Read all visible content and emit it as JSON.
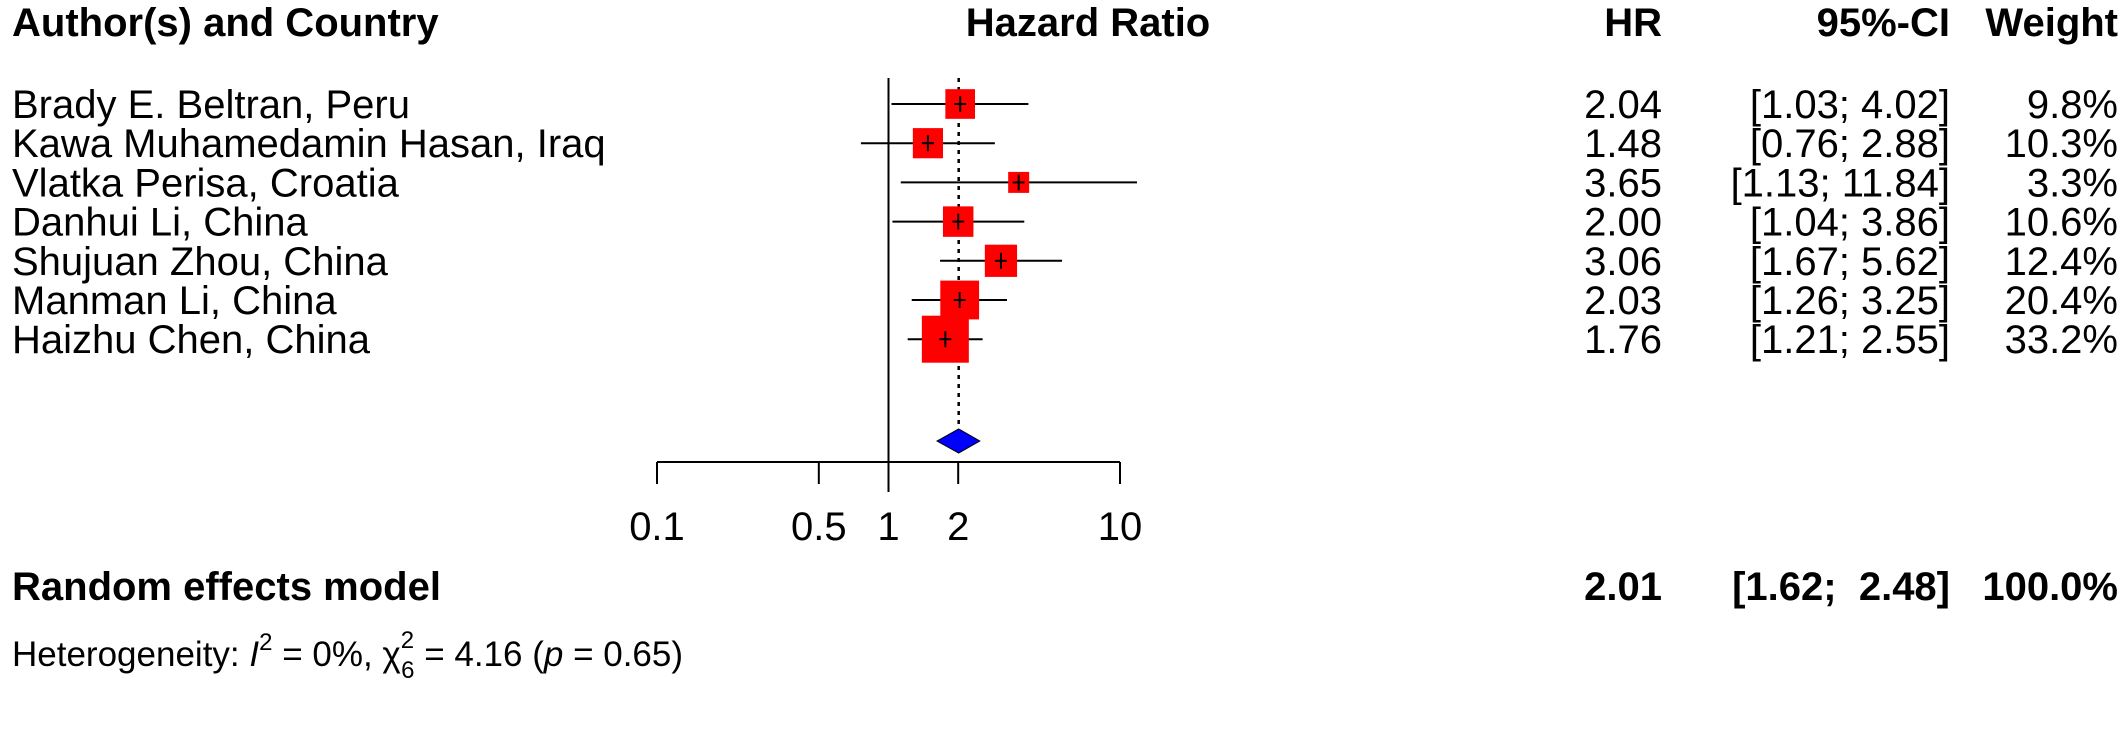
{
  "headers": {
    "study": "Author(s) and Country",
    "plot": "Hazard Ratio",
    "hr": "HR",
    "ci": "95%-CI",
    "weight": "Weight"
  },
  "chart_data": {
    "type": "forest",
    "x_scale": "log",
    "xlim": [
      0.1,
      10
    ],
    "ticks": [
      0.1,
      0.5,
      1,
      2,
      10
    ],
    "tick_labels": [
      "0.1",
      "0.5",
      "1",
      "2",
      "10"
    ],
    "reference_line": 1,
    "studies": [
      {
        "label": "Brady E. Beltran,  Peru",
        "hr": 2.04,
        "lower": 1.03,
        "upper": 4.02,
        "hr_text": "2.04",
        "ci_text": "[1.03;  4.02]",
        "weight": 9.8,
        "weight_text": "9.8%"
      },
      {
        "label": "Kawa Muhamedamin Hasan,  Iraq",
        "hr": 1.48,
        "lower": 0.76,
        "upper": 2.88,
        "hr_text": "1.48",
        "ci_text": "[0.76;  2.88]",
        "weight": 10.3,
        "weight_text": "10.3%"
      },
      {
        "label": "Vlatka Perisa,  Croatia",
        "hr": 3.65,
        "lower": 1.13,
        "upper": 11.84,
        "hr_text": "3.65",
        "ci_text": "[1.13; 11.84]",
        "weight": 3.3,
        "weight_text": "3.3%"
      },
      {
        "label": "Danhui Li,  China",
        "hr": 2.0,
        "lower": 1.04,
        "upper": 3.86,
        "hr_text": "2.00",
        "ci_text": "[1.04;  3.86]",
        "weight": 10.6,
        "weight_text": "10.6%"
      },
      {
        "label": "Shujuan Zhou,  China",
        "hr": 3.06,
        "lower": 1.67,
        "upper": 5.62,
        "hr_text": "3.06",
        "ci_text": "[1.67;  5.62]",
        "weight": 12.4,
        "weight_text": "12.4%"
      },
      {
        "label": "Manman Li,  China",
        "hr": 2.03,
        "lower": 1.26,
        "upper": 3.25,
        "hr_text": "2.03",
        "ci_text": "[1.26;  3.25]",
        "weight": 20.4,
        "weight_text": "20.4%"
      },
      {
        "label": "Haizhu Chen,  China",
        "hr": 1.76,
        "lower": 1.21,
        "upper": 2.55,
        "hr_text": "1.76",
        "ci_text": "[1.21;  2.55]",
        "weight": 33.2,
        "weight_text": "33.2%"
      }
    ],
    "pooled": {
      "label": "Random effects model",
      "hr": 2.01,
      "lower": 1.62,
      "upper": 2.48,
      "hr_text": "2.01",
      "ci_text": "[1.62;  2.48]",
      "weight_text": "100.0%"
    },
    "heterogeneity": {
      "prefix": "Heterogeneity: ",
      "i2_symbol": "I",
      "i2_exp": "2",
      "i2_value": " = 0%, ",
      "chi_symbol": "χ",
      "chi_sup": "2",
      "chi_sub": "6",
      "chi_value": " = 4.16 (",
      "p_symbol": "p",
      "p_value": " = 0.65)"
    },
    "colors": {
      "study_box": "#ff0000",
      "pooled_diamond": "#0000ff",
      "line": "#000000"
    }
  }
}
